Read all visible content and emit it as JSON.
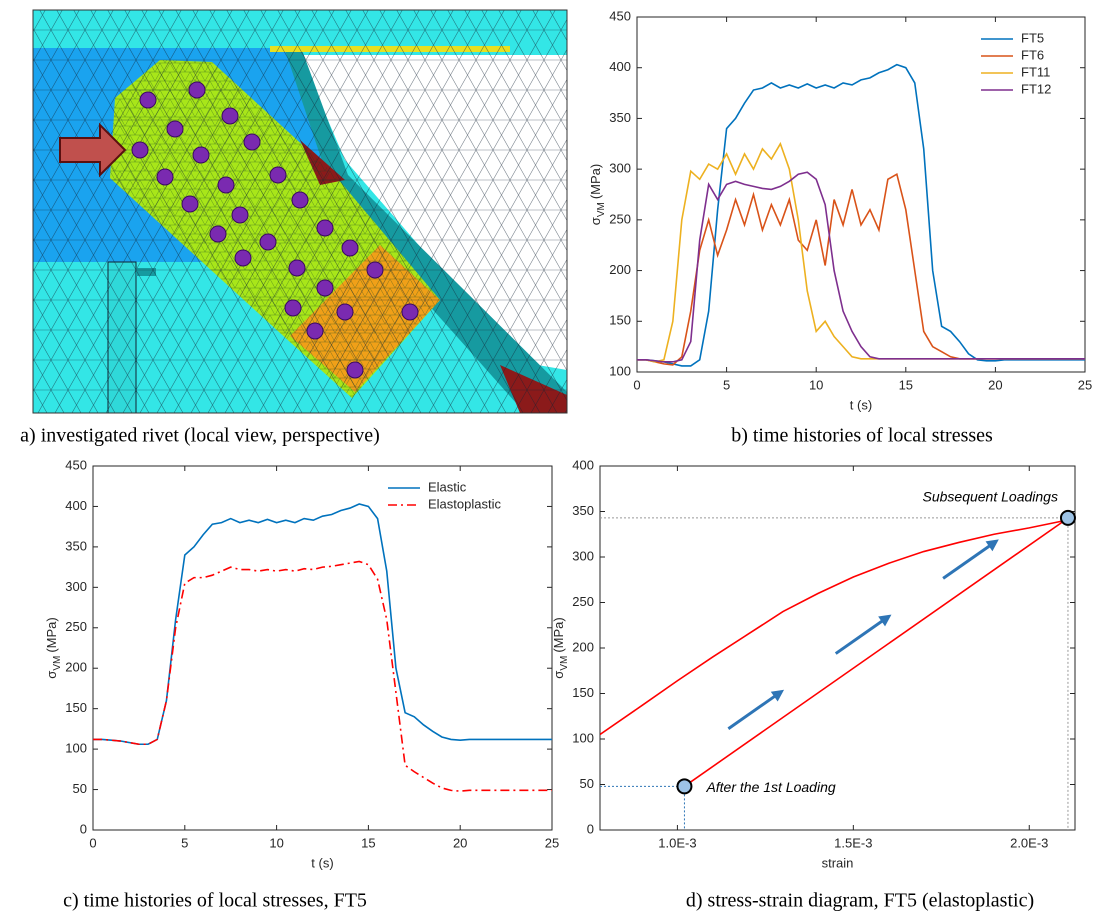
{
  "image": {
    "caption": "a) investigated rivet (local view, perspective)"
  },
  "chart_data": [
    {
      "type": "line",
      "caption": "b) time histories of local stresses",
      "xlabel": "t (s)",
      "ylabel": {
        "symbol": "σ",
        "subscript": "VM",
        "unit": "(MPa)"
      },
      "xlim": [
        0,
        25
      ],
      "ylim": [
        100,
        450
      ],
      "xticks": [
        0,
        5,
        10,
        15,
        20,
        25
      ],
      "yticks": [
        100,
        150,
        200,
        250,
        300,
        350,
        400,
        450
      ],
      "legend": "upper right",
      "x": [
        0,
        0.5,
        1,
        1.5,
        2,
        2.5,
        3,
        3.5,
        4,
        4.5,
        5,
        5.5,
        6,
        6.5,
        7,
        7.5,
        8,
        8.5,
        9,
        9.5,
        10,
        10.5,
        11,
        11.5,
        12,
        12.5,
        13,
        13.5,
        14,
        14.5,
        15,
        15.5,
        16,
        16.5,
        17,
        17.5,
        18,
        18.5,
        19,
        19.5,
        20,
        20.5,
        21,
        21.5,
        22,
        22.5,
        23,
        23.5,
        24,
        24.5,
        25
      ],
      "series": [
        {
          "name": "FT5",
          "color": "#0072bd",
          "values": [
            112,
            112,
            111,
            110,
            108,
            106,
            106,
            112,
            160,
            260,
            340,
            350,
            365,
            378,
            380,
            385,
            380,
            383,
            380,
            384,
            380,
            383,
            380,
            385,
            383,
            388,
            390,
            395,
            398,
            403,
            400,
            385,
            320,
            200,
            145,
            140,
            130,
            118,
            112,
            111,
            111,
            112,
            112,
            112,
            112,
            112,
            112,
            112,
            112,
            112,
            112
          ]
        },
        {
          "name": "FT6",
          "color": "#d95319",
          "values": [
            112,
            112,
            110,
            108,
            107,
            115,
            160,
            220,
            250,
            215,
            240,
            270,
            245,
            275,
            240,
            265,
            245,
            270,
            230,
            220,
            250,
            205,
            270,
            245,
            280,
            245,
            260,
            240,
            290,
            295,
            260,
            200,
            140,
            125,
            120,
            115,
            113,
            113,
            113,
            113,
            113,
            113,
            113,
            113,
            113,
            113,
            113,
            113,
            113,
            113,
            113
          ]
        },
        {
          "name": "FT11",
          "color": "#edb120",
          "values": [
            112,
            112,
            110,
            112,
            150,
            250,
            298,
            290,
            305,
            300,
            315,
            295,
            315,
            300,
            320,
            310,
            325,
            300,
            250,
            180,
            140,
            150,
            135,
            125,
            115,
            113,
            113,
            113,
            113,
            113,
            113,
            113,
            113,
            113,
            113,
            113,
            113,
            113,
            113,
            113,
            113,
            113,
            113,
            113,
            113,
            113,
            113,
            113,
            113,
            113,
            113
          ]
        },
        {
          "name": "FT12",
          "color": "#7e2f8e",
          "values": [
            112,
            112,
            111,
            110,
            110,
            112,
            130,
            230,
            285,
            270,
            285,
            288,
            285,
            283,
            281,
            280,
            283,
            288,
            295,
            297,
            290,
            265,
            200,
            160,
            140,
            125,
            115,
            113,
            113,
            113,
            113,
            113,
            113,
            113,
            113,
            113,
            113,
            113,
            113,
            113,
            113,
            113,
            113,
            113,
            113,
            113,
            113,
            113,
            113,
            113,
            113
          ]
        }
      ]
    },
    {
      "type": "line",
      "caption": "c) time histories of local stresses, FT5",
      "xlabel": "t (s)",
      "ylabel": {
        "symbol": "σ",
        "subscript": "VM",
        "unit": "(MPa)"
      },
      "xlim": [
        0,
        25
      ],
      "ylim": [
        0,
        450
      ],
      "xticks": [
        0,
        5,
        10,
        15,
        20,
        25
      ],
      "yticks": [
        0,
        50,
        100,
        150,
        200,
        250,
        300,
        350,
        400,
        450
      ],
      "legend": "upper right",
      "x": [
        0,
        0.5,
        1,
        1.5,
        2,
        2.5,
        3,
        3.5,
        4,
        4.5,
        5,
        5.5,
        6,
        6.5,
        7,
        7.5,
        8,
        8.5,
        9,
        9.5,
        10,
        10.5,
        11,
        11.5,
        12,
        12.5,
        13,
        13.5,
        14,
        14.5,
        15,
        15.5,
        16,
        16.5,
        17,
        17.5,
        18,
        18.5,
        19,
        19.5,
        20,
        20.5,
        21,
        21.5,
        22,
        22.5,
        23,
        23.5,
        24,
        24.5,
        25
      ],
      "series": [
        {
          "name": "Elastic",
          "color": "#0072bd",
          "linestyle": "solid",
          "values": [
            112,
            112,
            111,
            110,
            108,
            106,
            106,
            112,
            160,
            260,
            340,
            350,
            365,
            378,
            380,
            385,
            380,
            383,
            380,
            384,
            380,
            383,
            380,
            385,
            383,
            388,
            390,
            395,
            398,
            403,
            400,
            385,
            320,
            200,
            145,
            140,
            130,
            122,
            115,
            112,
            111,
            112,
            112,
            112,
            112,
            112,
            112,
            112,
            112,
            112,
            112
          ]
        },
        {
          "name": "Elastoplastic",
          "color": "#ff0000",
          "linestyle": "dashdot",
          "values": [
            112,
            112,
            111,
            110,
            108,
            106,
            106,
            112,
            160,
            250,
            305,
            312,
            312,
            315,
            320,
            325,
            322,
            322,
            320,
            322,
            320,
            322,
            320,
            323,
            322,
            325,
            326,
            328,
            330,
            332,
            328,
            310,
            260,
            170,
            80,
            72,
            65,
            58,
            52,
            49,
            48,
            49,
            49,
            49,
            49,
            49,
            49,
            49,
            49,
            49,
            49
          ]
        }
      ]
    },
    {
      "type": "line",
      "caption": "d) stress-strain diagram, FT5 (elastoplastic)",
      "xlabel": "strain",
      "ylabel": {
        "symbol": "σ",
        "subscript": "VM",
        "unit": "(MPa)"
      },
      "xlim": [
        0.00078,
        0.00213
      ],
      "ylim": [
        0,
        400
      ],
      "xticks": [
        {
          "value": 0.001,
          "label": "1.0E-3"
        },
        {
          "value": 0.0015,
          "label": "1.5E-3"
        },
        {
          "value": 0.002,
          "label": "2.0E-3"
        }
      ],
      "yticks": [
        0,
        50,
        100,
        150,
        200,
        250,
        300,
        350,
        400
      ],
      "series": [
        {
          "color": "#ff0000",
          "x": [
            0.00078,
            0.0009,
            0.001,
            0.0011,
            0.0012,
            0.0013,
            0.0014,
            0.0015,
            0.0016,
            0.0017,
            0.0018,
            0.0019,
            0.002,
            0.0021
          ],
          "values": [
            105,
            137,
            164,
            190,
            215,
            240,
            260,
            278,
            293,
            306,
            316,
            325,
            332,
            340
          ]
        },
        {
          "color": "#ff0000",
          "x": [
            0.00102,
            0.0021
          ],
          "values": [
            48,
            340
          ]
        }
      ],
      "points": [
        {
          "x": 0.00102,
          "y": 48
        },
        {
          "x": 0.00211,
          "y": 343
        }
      ],
      "annotations": [
        "After the 1st Loading",
        "Subsequent Loadings"
      ]
    }
  ]
}
